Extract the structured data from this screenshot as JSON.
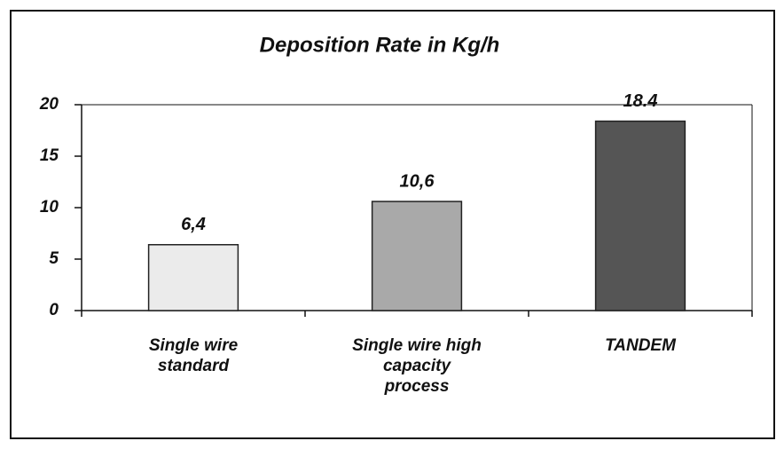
{
  "chart_data": {
    "type": "bar",
    "title": "Deposition Rate in Kg/h",
    "categories": [
      "Single wire standard",
      "Single wire high capacity process",
      "TANDEM"
    ],
    "values": [
      6.4,
      10.6,
      18.4
    ],
    "value_labels": [
      "6,4",
      "10,6",
      "18.4"
    ],
    "colors": [
      "#ebebeb",
      "#a9a9a9",
      "#555555"
    ],
    "ylim": [
      0,
      20
    ],
    "yticks": [
      0,
      5,
      10,
      15,
      20
    ],
    "grid": false
  }
}
